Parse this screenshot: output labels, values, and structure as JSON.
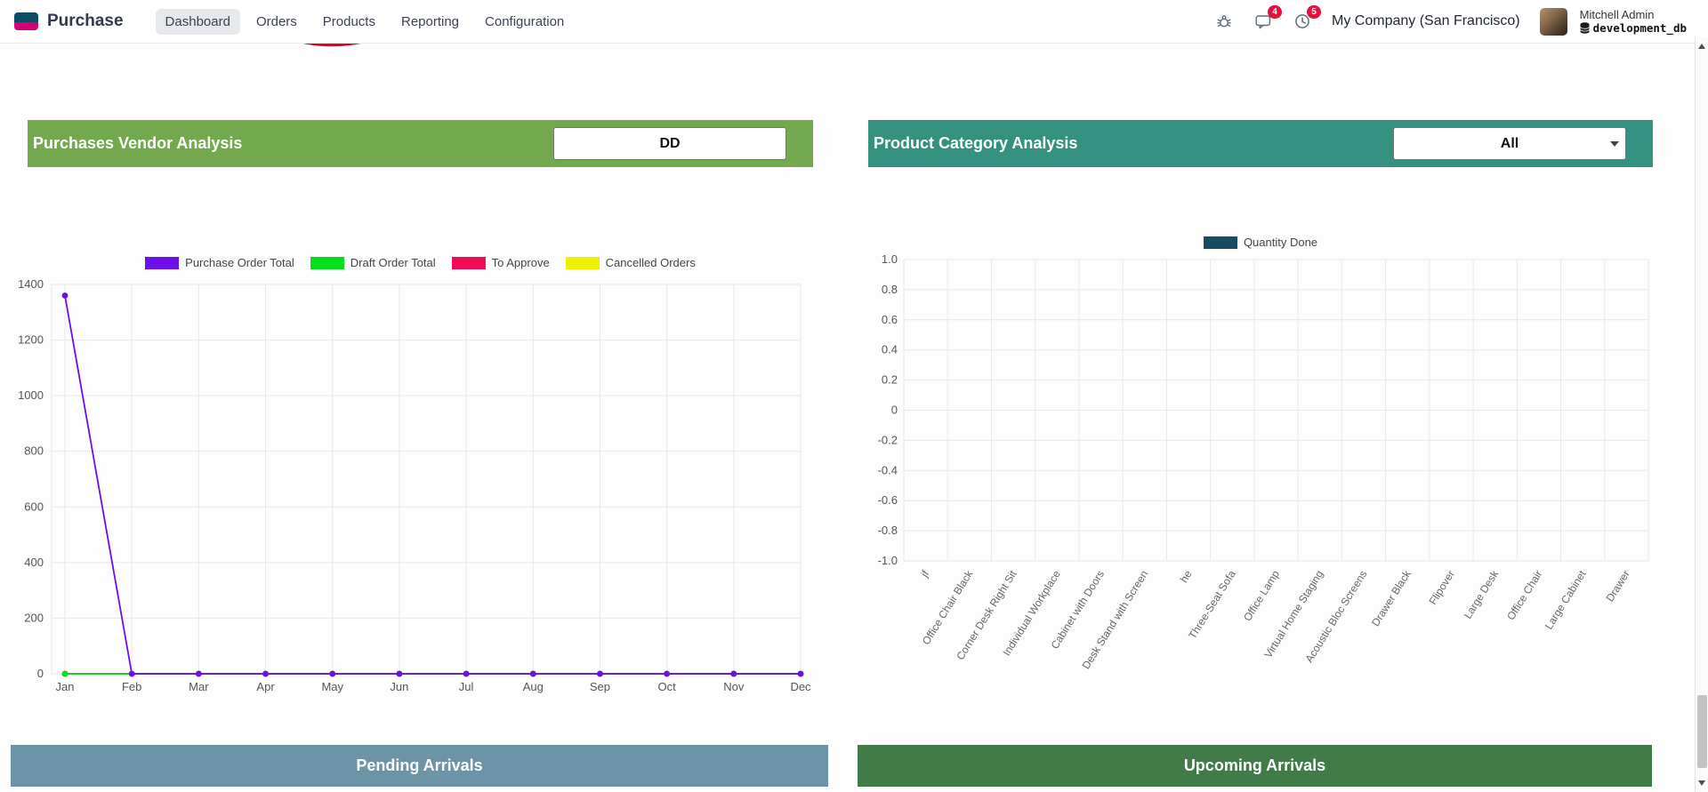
{
  "nav": {
    "app_name": "Purchase",
    "menu": [
      "Dashboard",
      "Orders",
      "Products",
      "Reporting",
      "Configuration"
    ],
    "active_item": "Dashboard",
    "company": "My Company (San Francisco)",
    "user_name": "Mitchell Admin",
    "database": "development_db",
    "message_badge": "4",
    "activity_badge": "5"
  },
  "decor": {
    "red_arc_color": "#e50019"
  },
  "panels": {
    "vendor_analysis": {
      "title": "Purchases Vendor Analysis",
      "filter_value": "DD",
      "header_color": "#72a94e"
    },
    "category_analysis": {
      "title": "Product Category Analysis",
      "filter_value": "All",
      "header_color": "#35917f"
    },
    "pending_arrivals": {
      "title": "Pending Arrivals",
      "header_color": "#6d93a6"
    },
    "upcoming_arrivals": {
      "title": "Upcoming Arrivals",
      "header_color": "#407b48"
    }
  },
  "chart_data": [
    {
      "type": "line",
      "title": "Purchases Vendor Analysis",
      "categories": [
        "Jan",
        "Feb",
        "Mar",
        "Apr",
        "May",
        "Jun",
        "Jul",
        "Aug",
        "Sep",
        "Oct",
        "Nov",
        "Dec"
      ],
      "series": [
        {
          "name": "Purchase Order Total",
          "color": "#6d0fe8",
          "values": [
            1360,
            0,
            0,
            0,
            0,
            0,
            0,
            0,
            0,
            0,
            0,
            0
          ]
        },
        {
          "name": "Draft Order Total",
          "color": "#00e01b",
          "values": [
            0,
            0,
            0,
            0,
            0,
            0,
            0,
            0,
            0,
            0,
            0,
            0
          ]
        },
        {
          "name": "To Approve",
          "color": "#ef0e56",
          "values": [
            0,
            0,
            0,
            0,
            0,
            0,
            0,
            0,
            0,
            0,
            0,
            0
          ]
        },
        {
          "name": "Cancelled Orders",
          "color": "#eef000",
          "values": [
            0,
            0,
            0,
            0,
            0,
            0,
            0,
            0,
            0,
            0,
            0,
            0
          ]
        }
      ],
      "xlabel": "",
      "ylabel": "",
      "ylim": [
        0,
        1400
      ],
      "ytick_step": 200,
      "grid": true,
      "legend_position": "top"
    },
    {
      "type": "bar",
      "title": "Product Category Analysis",
      "categories": [
        "jf",
        "Office Chair Black",
        "Corner Desk Right Sit",
        "Individual Workplace",
        "Cabinet with Doors",
        "Desk Stand with Screen",
        "he",
        "Three-Seat Sofa",
        "Office Lamp",
        "Virtual Home Staging",
        "Acoustic Bloc Screens",
        "Drawer Black",
        "Flipover",
        "Large Desk",
        "Office Chair",
        "Large Cabinet",
        "Drawer"
      ],
      "series": [
        {
          "name": "Quantity Done",
          "color": "#1a4a60",
          "values": [
            0,
            0,
            0,
            0,
            0,
            0,
            0,
            0,
            0,
            0,
            0,
            0,
            0,
            0,
            0,
            0,
            0
          ]
        }
      ],
      "xlabel": "",
      "ylabel": "",
      "ylim": [
        -1.0,
        1.0
      ],
      "ytick_step": 0.2,
      "grid": true,
      "legend_position": "top"
    }
  ]
}
